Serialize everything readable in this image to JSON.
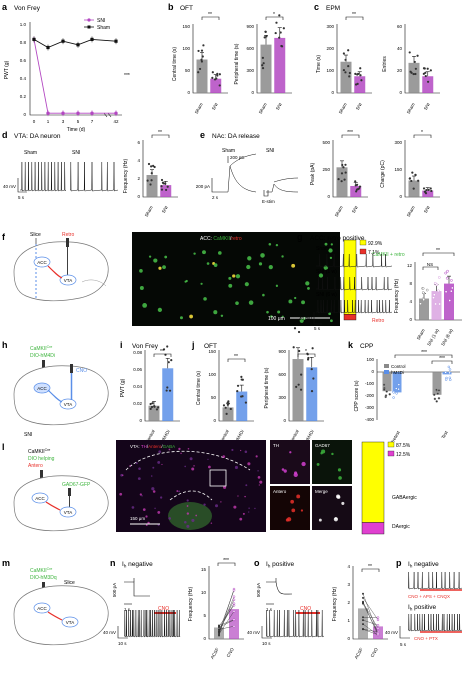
{
  "colors": {
    "sham": "#111111",
    "sni": "#b348c2",
    "sni_light": "#d9a3e0",
    "grey": "#8a8a8a",
    "blue": "#5b8fe8",
    "green": "#3db43d",
    "red": "#e8302a",
    "yellow": "#ffff00",
    "magenta": "#e040d0",
    "pale_grey": "#cfcfcf"
  },
  "icons": {
    "mouse_brain": "sagittal-brain-sketch",
    "neuron": "neuron-glyph"
  },
  "a": {
    "label": "a",
    "title": "Von Frey",
    "ylabel": "PWT (g)",
    "xlabel": "Time (d)",
    "yticks": [
      "0",
      "0.2",
      "0.4",
      "0.6",
      "0.8",
      "1.0"
    ],
    "xticks": [
      "0",
      "1",
      "3",
      "5",
      "7",
      "42"
    ],
    "legend": [
      "SNI",
      "Sham"
    ],
    "sig": "***"
  },
  "b": {
    "label": "b",
    "title": "OFT",
    "left_ylabel": "Central time (s)",
    "left_yticks": [
      "0",
      "50",
      "100",
      "150"
    ],
    "right_ylabel": "Peripheral time (s)",
    "right_yticks": [
      "0",
      "300",
      "600",
      "900"
    ],
    "cats": [
      "Sham",
      "SNI"
    ],
    "sig_left": "**",
    "sig_right": "*"
  },
  "c": {
    "label": "c",
    "title": "EPM",
    "left_ylabel": "Time (s)",
    "left_yticks": [
      "0",
      "100",
      "200",
      "300"
    ],
    "right_ylabel": "Entries",
    "right_yticks": [
      "0",
      "20",
      "40",
      "60"
    ],
    "cats": [
      "Sham",
      "SNI"
    ],
    "sig": "**"
  },
  "d": {
    "label": "d",
    "title": "VTA: DA neuron",
    "trace_labels": [
      "Sham",
      "SNI"
    ],
    "scale_v": "40 mV",
    "scale_t": "5 s",
    "ylabel": "Frequency (Hz)",
    "yticks": [
      "0",
      "2",
      "4",
      "6"
    ],
    "cats": [
      "Sham",
      "SNI"
    ],
    "sig": "**"
  },
  "e": {
    "label": "e",
    "title": "NAc: DA release",
    "trace_labels": [
      "Sham",
      "SNI"
    ],
    "scale_a": "200 pA",
    "scale_t": "2 s",
    "scale_c": "200 pC",
    "estim": "E-stim",
    "peak_ylabel": "Peak (pA)",
    "peak_yticks": [
      "0",
      "250",
      "500"
    ],
    "charge_ylabel": "Charge (pC)",
    "charge_yticks": [
      "0",
      "150",
      "300"
    ],
    "cats": [
      "Sham",
      "SNI"
    ],
    "sig_peak": "***",
    "sig_charge": "*"
  },
  "f": {
    "label": "f",
    "sketch": {
      "slice": "Slice",
      "retro": "Retro",
      "acc": "ACC",
      "vta": "VTA"
    },
    "image_title": [
      "ACC: ",
      "CaMKII",
      "/",
      "retro"
    ],
    "scale": "100 μm",
    "bar_pct": [
      "92.9%",
      "7.1%"
    ],
    "bar_labels": [
      "CaMKII + retro",
      "Retro"
    ]
  },
  "g": {
    "label": "g",
    "title": "ACC: retro positive",
    "trace_labels": [
      "Sham",
      "SNI (1 w)",
      "SNI (6 w)"
    ],
    "scale_v": "40 mV",
    "scale_t": "5 s",
    "ylabel": "Frequency (Hz)",
    "yticks": [
      "0",
      "4",
      "8",
      "12"
    ],
    "cats": [
      "Sham",
      "SNI (1 w)",
      "SNI (6 w)"
    ],
    "sig_top": "**",
    "sig_ns": "NS"
  },
  "h": {
    "label": "h",
    "virus": [
      "CaMKII",
      "Cre",
      "DIO-hM4Di"
    ],
    "cno": "CNO",
    "acc": "ACC",
    "vta": "VTA",
    "model": "SNI"
  },
  "i": {
    "label": "i",
    "title": "Von Frey",
    "ylabel": "PWT (g)",
    "yticks": [
      "0",
      "0.02",
      "0.04",
      "0.06",
      "0.08"
    ],
    "cats": [
      "Control",
      "hM4Di"
    ],
    "sig": "**"
  },
  "j": {
    "label": "j",
    "title": "OFT",
    "left_ylabel": "Central time (s)",
    "left_yticks": [
      "0",
      "50",
      "100",
      "150"
    ],
    "right_ylabel": "Peripheral time (s)",
    "right_yticks": [
      "0",
      "300",
      "600",
      "900"
    ],
    "cats": [
      "Control",
      "hM4Di"
    ],
    "sig_left": "**",
    "sig_right": "*"
  },
  "k": {
    "label": "k",
    "title": "CPP",
    "ylabel": "CPP score (s)",
    "yticks": [
      "100",
      "0",
      "-100",
      "-200",
      "-300",
      "-400"
    ],
    "legend": [
      "Control",
      "hM4Di"
    ],
    "cats": [
      "Pretest",
      "Test"
    ],
    "sig_top": "***",
    "sig_inner": "***"
  },
  "l": {
    "label": "l",
    "virus": [
      "CaMKII",
      "Cre",
      "DIO helping",
      "Antero",
      "GAD67-GFP"
    ],
    "acc": "ACC",
    "vta": "VTA",
    "image_title": [
      "VTA: ",
      "TH",
      "/",
      "Antero",
      "/",
      "GABA"
    ],
    "inset_labels": [
      "TH",
      "GAD67",
      "Antero",
      "Merge"
    ],
    "scale": "150 μm",
    "bar_pct": [
      "87.5%",
      "12.5%"
    ],
    "bar_labels": [
      "GABAergic",
      "DAergic"
    ]
  },
  "m": {
    "label": "m",
    "virus": [
      "CaMKII",
      "Cre",
      "DIO-hM3Dq"
    ],
    "slice": "Slice",
    "acc": "ACC",
    "vta": "VTA"
  },
  "n": {
    "label": "n",
    "title_pre": "I",
    "title_sub": "h",
    "title_post": " negative",
    "scale_a": "500 pA",
    "scale_t1": "1 s",
    "cno": "CNO",
    "scale_v": "40 mV",
    "scale_t2": "10 s",
    "ylabel": "Frequency (Hz)",
    "yticks": [
      "0",
      "5",
      "10",
      "15"
    ],
    "cats": [
      "ACSF",
      "CNO"
    ],
    "sig": "***"
  },
  "o": {
    "label": "o",
    "title_pre": "I",
    "title_sub": "h",
    "title_post": " positive",
    "scale_a": "500 pA",
    "scale_t1": "1 s",
    "cno": "CNO",
    "scale_v": "40 mV",
    "scale_t2": "10 s",
    "ylabel": "Frequency (Hz)",
    "yticks": [
      "0",
      "1",
      "2",
      "3",
      "4"
    ],
    "cats": [
      "ACSF",
      "CNO"
    ],
    "sig": "**"
  },
  "p": {
    "label": "p",
    "title1_pre": "I",
    "title1_sub": "h",
    "title1_post": " negative",
    "cond1": "CNO + APS + CNQX",
    "title2_pre": "I",
    "title2_sub": "h",
    "title2_post": " positive",
    "cond2": "CNO + PTX",
    "scale_v": "40 mV",
    "scale_t": "5 s"
  },
  "chart_data": [
    {
      "id": "a",
      "type": "line",
      "title": "Von Frey",
      "xlabel": "Time (d)",
      "ylabel": "PWT (g)",
      "x": [
        0,
        1,
        3,
        5,
        7,
        42
      ],
      "ylim": [
        0,
        1.0
      ],
      "series": [
        {
          "name": "SNI",
          "values": [
            0.84,
            0.02,
            0.02,
            0.02,
            0.02,
            0.02
          ]
        },
        {
          "name": "Sham",
          "values": [
            0.84,
            0.75,
            0.82,
            0.78,
            0.84,
            0.82
          ]
        }
      ]
    },
    {
      "id": "b-left",
      "type": "bar",
      "ylabel": "Central time (s)",
      "categories": [
        "Sham",
        "SNI"
      ],
      "values": [
        75,
        32
      ],
      "ylim": [
        0,
        150
      ]
    },
    {
      "id": "b-right",
      "type": "bar",
      "ylabel": "Peripheral time (s)",
      "categories": [
        "Sham",
        "SNI"
      ],
      "values": [
        650,
        740
      ],
      "ylim": [
        0,
        900
      ]
    },
    {
      "id": "c-left",
      "type": "bar",
      "ylabel": "Time (s)",
      "categories": [
        "Sham",
        "SNI"
      ],
      "values": [
        140,
        75
      ],
      "ylim": [
        0,
        300
      ]
    },
    {
      "id": "c-right",
      "type": "bar",
      "ylabel": "Entries",
      "categories": [
        "Sham",
        "SNI"
      ],
      "values": [
        27,
        15
      ],
      "ylim": [
        0,
        60
      ]
    },
    {
      "id": "d",
      "type": "bar",
      "ylabel": "Frequency (Hz)",
      "categories": [
        "Sham",
        "SNI"
      ],
      "values": [
        2.4,
        1.3
      ],
      "ylim": [
        0,
        6
      ]
    },
    {
      "id": "e-peak",
      "type": "bar",
      "ylabel": "Peak (pA)",
      "categories": [
        "Sham",
        "SNI"
      ],
      "values": [
        270,
        100
      ],
      "ylim": [
        0,
        500
      ]
    },
    {
      "id": "e-charge",
      "type": "bar",
      "ylabel": "Charge (pC)",
      "categories": [
        "Sham",
        "SNI"
      ],
      "values": [
        90,
        35
      ],
      "ylim": [
        0,
        300
      ]
    },
    {
      "id": "f",
      "type": "bar",
      "categories": [
        "CaMKII + retro",
        "Retro"
      ],
      "values": [
        92.9,
        7.1
      ]
    },
    {
      "id": "g",
      "type": "bar",
      "ylabel": "Frequency (Hz)",
      "categories": [
        "Sham",
        "SNI (1 w)",
        "SNI (6 w)"
      ],
      "values": [
        4.6,
        6.2,
        7.8
      ],
      "ylim": [
        0,
        12
      ]
    },
    {
      "id": "i",
      "type": "bar",
      "ylabel": "PWT (g)",
      "categories": [
        "Control",
        "hM4Di"
      ],
      "values": [
        0.018,
        0.062
      ],
      "ylim": [
        0,
        0.08
      ]
    },
    {
      "id": "j-left",
      "type": "bar",
      "ylabel": "Central time (s)",
      "categories": [
        "Control",
        "hM4Di"
      ],
      "values": [
        30,
        65
      ],
      "ylim": [
        0,
        150
      ]
    },
    {
      "id": "j-right",
      "type": "bar",
      "ylabel": "Peripheral time (s)",
      "categories": [
        "Control",
        "hM4Di"
      ],
      "values": [
        820,
        710
      ],
      "ylim": [
        0,
        900
      ]
    },
    {
      "id": "k",
      "type": "bar",
      "ylabel": "CPP score (s)",
      "categories": [
        "Pretest",
        "Test"
      ],
      "ylim": [
        -400,
        100
      ],
      "series": [
        {
          "name": "Control",
          "values": [
            -160,
            -190
          ]
        },
        {
          "name": "hM4Di",
          "values": [
            -170,
            -20
          ]
        }
      ]
    },
    {
      "id": "l",
      "type": "bar",
      "categories": [
        "GABAergic",
        "DAergic"
      ],
      "values": [
        87.5,
        12.5
      ]
    },
    {
      "id": "n",
      "type": "line",
      "ylabel": "Frequency (Hz)",
      "categories": [
        "ACSF",
        "CNO"
      ],
      "ylim": [
        0,
        15
      ],
      "values": [
        2.5,
        6.5
      ]
    },
    {
      "id": "o",
      "type": "line",
      "ylabel": "Frequency (Hz)",
      "categories": [
        "ACSF",
        "CNO"
      ],
      "ylim": [
        0,
        4
      ],
      "values": [
        1.7,
        0.7
      ]
    }
  ]
}
